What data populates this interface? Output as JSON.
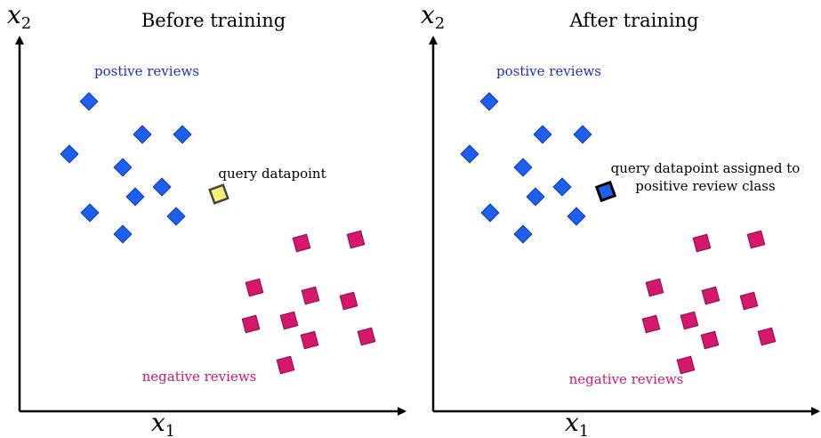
{
  "panels": [
    {
      "title": "Before training",
      "positive_label": "postive reviews",
      "negative_label": "negative reviews",
      "query_label": [
        "query datapoint"
      ],
      "x_axis": {
        "symbol": "x",
        "subscript": "1"
      },
      "y_axis": {
        "symbol": "x",
        "subscript": "2"
      }
    },
    {
      "title": "After training",
      "positive_label": "postive reviews",
      "negative_label": "negative reviews",
      "query_label": [
        "query datapoint assigned to",
        "positive review class"
      ],
      "x_axis": {
        "symbol": "x",
        "subscript": "1"
      },
      "y_axis": {
        "symbol": "x",
        "subscript": "2"
      }
    }
  ]
}
